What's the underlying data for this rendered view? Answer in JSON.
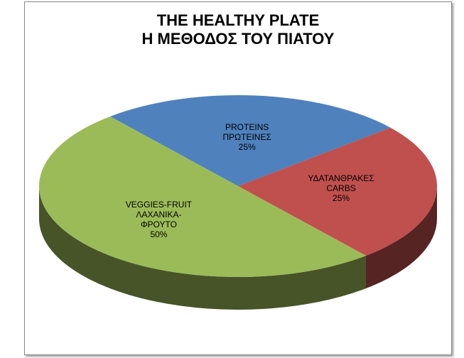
{
  "chart_data": {
    "type": "pie3d",
    "title": [
      "THE HEALTHY PLATE",
      "Η ΜΕΘΟΔΟΣ ΤΟΥ ΠΙΑΤΟΥ"
    ],
    "categories": [
      "PROTEINS ΠΡΩΤΕΙΝΕΣ",
      "ΥΔΑΤΑΝΘΡΑΚΕΣ CARBS",
      "VEGGIES-FRUIT ΛΑΧΑΝΙΚΑ-ΦΡΟΥΤΟ"
    ],
    "values": [
      25,
      25,
      50
    ],
    "value_labels": [
      "25%",
      "25%",
      "50%"
    ],
    "colors": [
      "#4f81bd",
      "#c0504d",
      "#9bbb59"
    ]
  }
}
